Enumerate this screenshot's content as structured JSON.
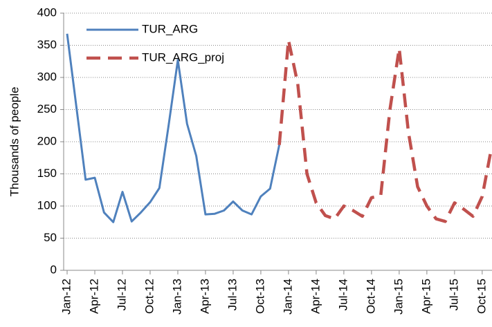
{
  "chart_data": {
    "type": "line",
    "categories": [
      "Jan-12",
      null,
      null,
      "Apr-12",
      null,
      null,
      "Jul-12",
      null,
      null,
      "Oct-12",
      null,
      null,
      "Jan-13",
      null,
      null,
      "Apr-13",
      null,
      null,
      "Jul-13",
      null,
      null,
      "Oct-13",
      null,
      null,
      "Jan-14",
      null,
      null,
      "Apr-14",
      null,
      null,
      "Jul-14",
      null,
      null,
      "Oct-14",
      null,
      null,
      "Jan-15",
      null,
      null,
      "Apr-15",
      null,
      null,
      "Jul-15",
      null,
      null,
      "Oct-15",
      null
    ],
    "series": [
      {
        "name": "TUR_ARG",
        "color": "#4f81bd",
        "values": [
          368,
          255,
          141,
          144,
          90,
          75,
          122,
          76,
          90,
          106,
          128,
          225,
          327,
          228,
          178,
          87,
          88,
          93,
          107,
          93,
          87,
          115,
          127,
          195,
          null,
          null,
          null,
          null,
          null,
          null,
          null,
          null,
          null,
          null,
          null,
          null,
          null,
          null,
          null,
          null,
          null,
          null,
          null,
          null,
          null,
          null,
          null
        ]
      },
      {
        "name": "TUR_ARG_proj",
        "color": "#c0504d",
        "dashed": true,
        "values": [
          null,
          null,
          null,
          null,
          null,
          null,
          null,
          null,
          null,
          null,
          null,
          null,
          null,
          null,
          null,
          null,
          null,
          null,
          null,
          null,
          null,
          null,
          null,
          195,
          358,
          290,
          150,
          105,
          85,
          80,
          100,
          93,
          84,
          113,
          116,
          250,
          345,
          215,
          130,
          100,
          80,
          76,
          105,
          95,
          84,
          115,
          190
        ]
      }
    ],
    "y_label": "Thousands of people",
    "ylim": [
      0,
      400
    ],
    "yticks": [
      0,
      50,
      100,
      150,
      200,
      250,
      300,
      350,
      400
    ],
    "grid": true,
    "legend": "upper left"
  }
}
